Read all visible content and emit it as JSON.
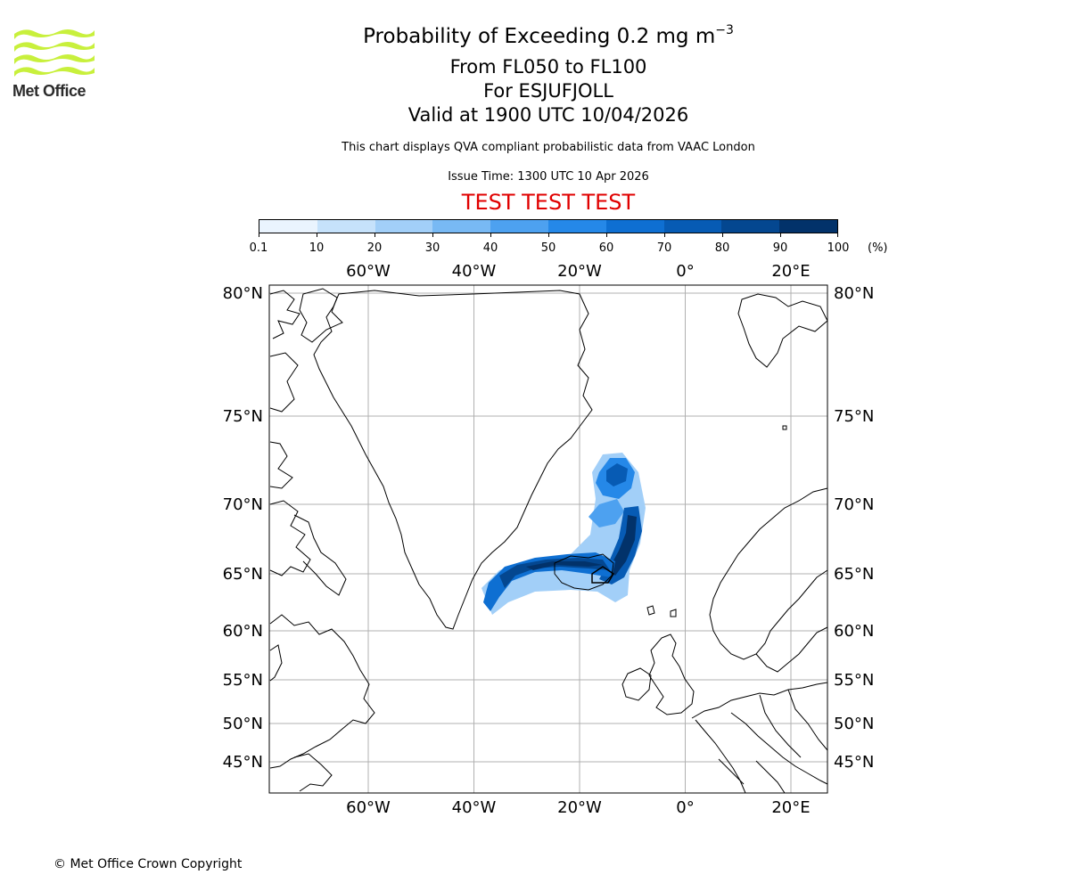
{
  "logo": {
    "text": "Met Office",
    "color": "#c8f03c"
  },
  "header": {
    "title_main": "Probability of Exceeding 0.2 mg m",
    "title_exponent": "−3",
    "levels": "From FL050 to FL100",
    "volcano": "For ESJUFJOLL",
    "valid_time": "Valid at 1900 UTC 10/04/2026",
    "description": "This chart displays QVA compliant probabilistic data from VAAC London",
    "issue_time": "Issue Time: 1300 UTC 10 Apr 2026",
    "test_banner": "TEST TEST TEST"
  },
  "colorbar": {
    "colors": [
      "#eaf4fe",
      "#c6e2fb",
      "#a2cff8",
      "#78b9f4",
      "#4da1f0",
      "#2588e8",
      "#0e6fd2",
      "#075bb4",
      "#044790",
      "#02326a"
    ],
    "ticks": [
      "0.1",
      "10",
      "20",
      "30",
      "40",
      "50",
      "60",
      "70",
      "80",
      "90",
      "100"
    ],
    "units": "(%)"
  },
  "map": {
    "lon_labels": [
      "60°W",
      "40°W",
      "20°W",
      "0°",
      "20°E"
    ],
    "lat_labels": [
      "80°N",
      "75°N",
      "70°N",
      "65°N",
      "60°N",
      "55°N",
      "50°N",
      "45°N"
    ],
    "lon_values": [
      -60,
      -40,
      -20,
      0,
      20
    ],
    "lat_values": [
      80,
      75,
      70,
      65,
      60,
      55,
      50,
      45
    ]
  },
  "footer": {
    "copyright": "© Met Office Crown Copyright"
  }
}
